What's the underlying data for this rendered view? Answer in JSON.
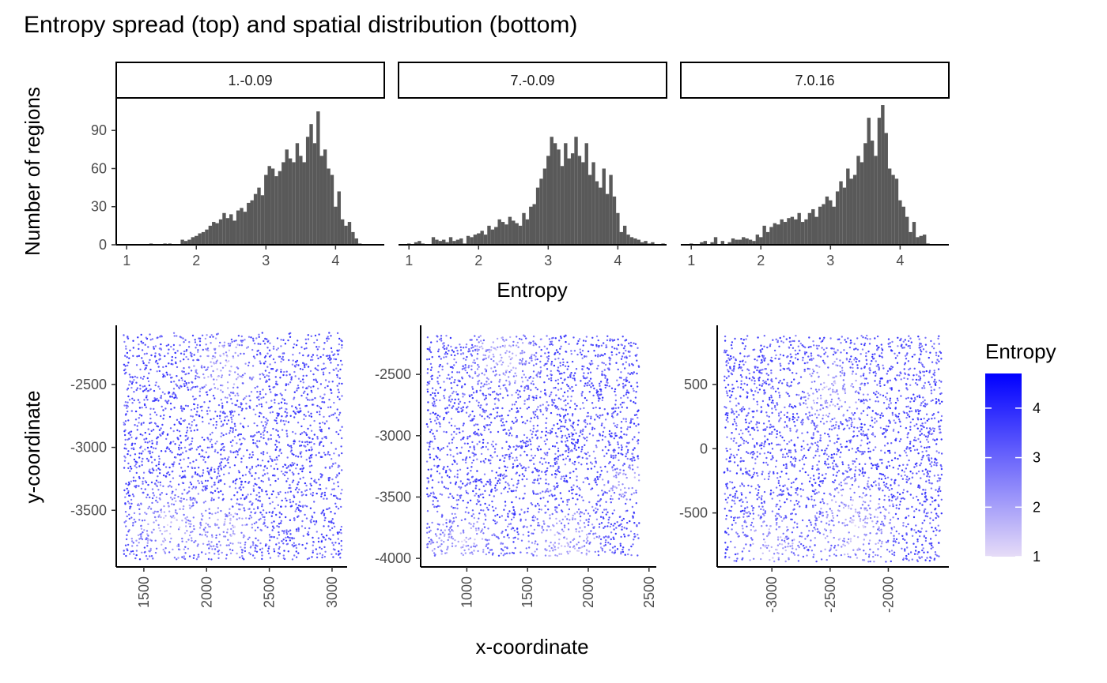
{
  "title": "Entropy spread (top) and spatial distribution (bottom)",
  "colors": {
    "bar": "#595959",
    "low": "#E6DCF7",
    "high": "#0000FF"
  },
  "histograms": {
    "xlabel": "Entropy",
    "ylabel": "Number of regions",
    "xticks": [
      "1",
      "2",
      "3",
      "4"
    ],
    "yticks": [
      "0",
      "30",
      "60",
      "90"
    ]
  },
  "spatial": {
    "xlabel": "x-coordinate",
    "ylabel": "y-coordinate"
  },
  "legend": {
    "title": "Entropy",
    "labels": [
      "1",
      "2",
      "3",
      "4"
    ]
  },
  "chart_data": [
    {
      "type": "bar",
      "panel": "1.-0.09",
      "xlabel": "Entropy",
      "ylabel": "Number of regions",
      "xlim": [
        0.85,
        4.7
      ],
      "ylim": [
        0,
        115
      ],
      "x": [
        1.35,
        1.55,
        1.62,
        1.8,
        1.85,
        1.9,
        1.95,
        2.0,
        2.05,
        2.1,
        2.15,
        2.2,
        2.25,
        2.3,
        2.35,
        2.4,
        2.45,
        2.5,
        2.55,
        2.6,
        2.65,
        2.7,
        2.75,
        2.8,
        2.85,
        2.9,
        2.95,
        3.0,
        3.05,
        3.1,
        3.15,
        3.2,
        3.25,
        3.3,
        3.35,
        3.4,
        3.45,
        3.5,
        3.55,
        3.6,
        3.65,
        3.7,
        3.75,
        3.8,
        3.85,
        3.9,
        3.95,
        4.0,
        4.05,
        4.1,
        4.15,
        4.2,
        4.25,
        4.3,
        4.35
      ],
      "values": [
        1,
        1,
        1,
        4,
        3,
        4,
        6,
        7,
        9,
        10,
        12,
        15,
        18,
        17,
        20,
        25,
        21,
        24,
        19,
        27,
        29,
        26,
        33,
        35,
        40,
        45,
        39,
        55,
        62,
        60,
        54,
        58,
        65,
        75,
        68,
        65,
        80,
        70,
        65,
        85,
        95,
        80,
        105,
        70,
        75,
        60,
        55,
        30,
        42,
        20,
        15,
        18,
        10,
        5,
        1
      ]
    },
    {
      "type": "bar",
      "panel": "7.-0.09",
      "xlabel": "Entropy",
      "ylabel": "Number of regions",
      "xlim": [
        0.85,
        4.7
      ],
      "ylim": [
        0,
        115
      ],
      "x": [
        1.0,
        1.1,
        1.15,
        1.2,
        1.35,
        1.4,
        1.45,
        1.5,
        1.55,
        1.6,
        1.65,
        1.7,
        1.75,
        1.8,
        1.85,
        1.9,
        1.95,
        2.0,
        2.05,
        2.1,
        2.15,
        2.2,
        2.25,
        2.3,
        2.35,
        2.4,
        2.45,
        2.5,
        2.55,
        2.6,
        2.65,
        2.7,
        2.75,
        2.8,
        2.85,
        2.9,
        2.95,
        3.0,
        3.05,
        3.1,
        3.15,
        3.2,
        3.25,
        3.3,
        3.35,
        3.4,
        3.45,
        3.5,
        3.55,
        3.6,
        3.65,
        3.7,
        3.75,
        3.8,
        3.85,
        3.9,
        3.95,
        4.0,
        4.05,
        4.1,
        4.15,
        4.2,
        4.25,
        4.3,
        4.35,
        4.4,
        4.45,
        4.5,
        4.65
      ],
      "values": [
        1,
        2,
        3,
        1,
        6,
        4,
        3,
        4,
        2,
        6,
        3,
        4,
        5,
        1,
        7,
        6,
        8,
        9,
        11,
        8,
        15,
        12,
        14,
        20,
        18,
        16,
        22,
        19,
        17,
        15,
        25,
        20,
        30,
        32,
        45,
        52,
        60,
        70,
        85,
        80,
        75,
        62,
        80,
        68,
        72,
        85,
        70,
        65,
        80,
        55,
        65,
        50,
        45,
        60,
        40,
        55,
        38,
        25,
        10,
        15,
        8,
        6,
        5,
        4,
        2,
        3,
        1,
        2,
        1
      ]
    },
    {
      "type": "bar",
      "panel": "7.0.16",
      "xlabel": "Entropy",
      "ylabel": "Number of regions",
      "xlim": [
        0.85,
        4.7
      ],
      "ylim": [
        0,
        115
      ],
      "x": [
        1.0,
        1.15,
        1.2,
        1.3,
        1.35,
        1.45,
        1.55,
        1.6,
        1.65,
        1.7,
        1.75,
        1.8,
        1.85,
        1.9,
        1.95,
        2.0,
        2.05,
        2.1,
        2.15,
        2.2,
        2.25,
        2.3,
        2.35,
        2.4,
        2.45,
        2.5,
        2.55,
        2.6,
        2.65,
        2.7,
        2.75,
        2.8,
        2.85,
        2.9,
        2.95,
        3.0,
        3.05,
        3.1,
        3.15,
        3.2,
        3.25,
        3.3,
        3.35,
        3.4,
        3.45,
        3.5,
        3.55,
        3.6,
        3.65,
        3.7,
        3.75,
        3.8,
        3.85,
        3.9,
        3.95,
        4.0,
        4.05,
        4.1,
        4.15,
        4.2,
        4.25,
        4.3,
        4.35,
        4.4
      ],
      "values": [
        1,
        2,
        3,
        2,
        6,
        3,
        2,
        5,
        4,
        4,
        6,
        5,
        4,
        3,
        8,
        6,
        15,
        10,
        14,
        17,
        16,
        20,
        18,
        21,
        22,
        20,
        25,
        18,
        20,
        25,
        28,
        22,
        30,
        32,
        38,
        35,
        30,
        42,
        50,
        45,
        60,
        52,
        55,
        70,
        65,
        80,
        100,
        82,
        70,
        100,
        110,
        88,
        60,
        55,
        52,
        35,
        30,
        22,
        10,
        18,
        6,
        7,
        8,
        1
      ]
    },
    {
      "type": "scatter",
      "panel": "1.-0.09",
      "xlabel": "x-coordinate",
      "ylabel": "y-coordinate",
      "color_by": "Entropy",
      "xlim": [
        1280,
        3120
      ],
      "ylim": [
        -3950,
        -2030
      ],
      "xticks": [
        "1500",
        "2000",
        "2500",
        "3000"
      ],
      "yticks": [
        "-2500",
        "-3000",
        "-3500"
      ],
      "point_extent": {
        "x": [
          1340,
          3080
        ],
        "y": [
          -3890,
          -2090
        ]
      },
      "low_entropy_zones": [
        [
          2150,
          -2350,
          220
        ],
        [
          1700,
          -3600,
          250
        ],
        [
          2200,
          -3650,
          180
        ]
      ],
      "n_points": 2600
    },
    {
      "type": "scatter",
      "panel": "7.-0.09",
      "xlabel": "x-coordinate",
      "ylabel": "y-coordinate",
      "color_by": "Entropy",
      "xlim": [
        620,
        2560
      ],
      "ylim": [
        -4070,
        -2100
      ],
      "xticks": [
        "1000",
        "1500",
        "2000",
        "2500"
      ],
      "yticks": [
        "-2500",
        "-3000",
        "-3500",
        "-4000"
      ],
      "point_extent": {
        "x": [
          670,
          2420
        ],
        "y": [
          -3980,
          -2180
        ]
      },
      "low_entropy_zones": [
        [
          1800,
          -3950,
          300
        ],
        [
          950,
          -3900,
          250
        ],
        [
          1300,
          -2350,
          250
        ],
        [
          2300,
          -3400,
          150
        ]
      ],
      "n_points": 2600
    },
    {
      "type": "scatter",
      "panel": "7.0.16",
      "xlabel": "x-coordinate",
      "ylabel": "y-coordinate",
      "color_by": "Entropy",
      "xlim": [
        -3470,
        -1480
      ],
      "ylim": [
        -920,
        960
      ],
      "xticks": [
        "-3000",
        "-2500",
        "-2000"
      ],
      "yticks": [
        "500",
        "0",
        "-500"
      ],
      "point_extent": {
        "x": [
          -3410,
          -1540
        ],
        "y": [
          -880,
          880
        ]
      },
      "low_entropy_zones": [
        [
          -2500,
          450,
          230
        ],
        [
          -2300,
          -600,
          300
        ],
        [
          -3000,
          -750,
          220
        ]
      ],
      "n_points": 2600
    }
  ]
}
